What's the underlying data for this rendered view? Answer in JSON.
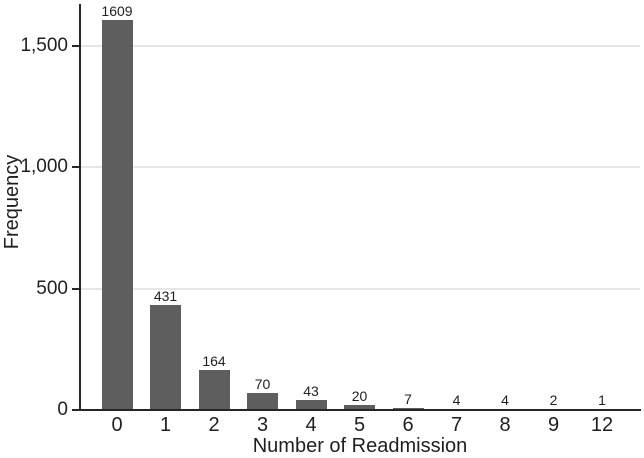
{
  "chart_data": {
    "type": "bar",
    "title": "",
    "xlabel": "Number of Readmission",
    "ylabel": "Frequency",
    "categories": [
      "0",
      "1",
      "2",
      "3",
      "4",
      "5",
      "6",
      "7",
      "8",
      "9",
      "12"
    ],
    "values": [
      1609,
      431,
      164,
      70,
      43,
      20,
      7,
      4,
      4,
      2,
      1
    ],
    "bar_value_labels": [
      "1609",
      "431",
      "164",
      "70",
      "43",
      "20",
      "7",
      "4",
      "4",
      "2",
      "1"
    ],
    "yticks": [
      {
        "value": 0,
        "label": "0"
      },
      {
        "value": 500,
        "label": "500"
      },
      {
        "value": 1000,
        "label": "1,000"
      },
      {
        "value": 1500,
        "label": "1,500"
      }
    ],
    "ylim": [
      0,
      1690
    ],
    "grid": true,
    "legend": false,
    "colors": {
      "bar": "#5e5e5e",
      "gridline": "#e6e6e6",
      "axis": "#262626",
      "text": "#1f1f1f"
    }
  }
}
